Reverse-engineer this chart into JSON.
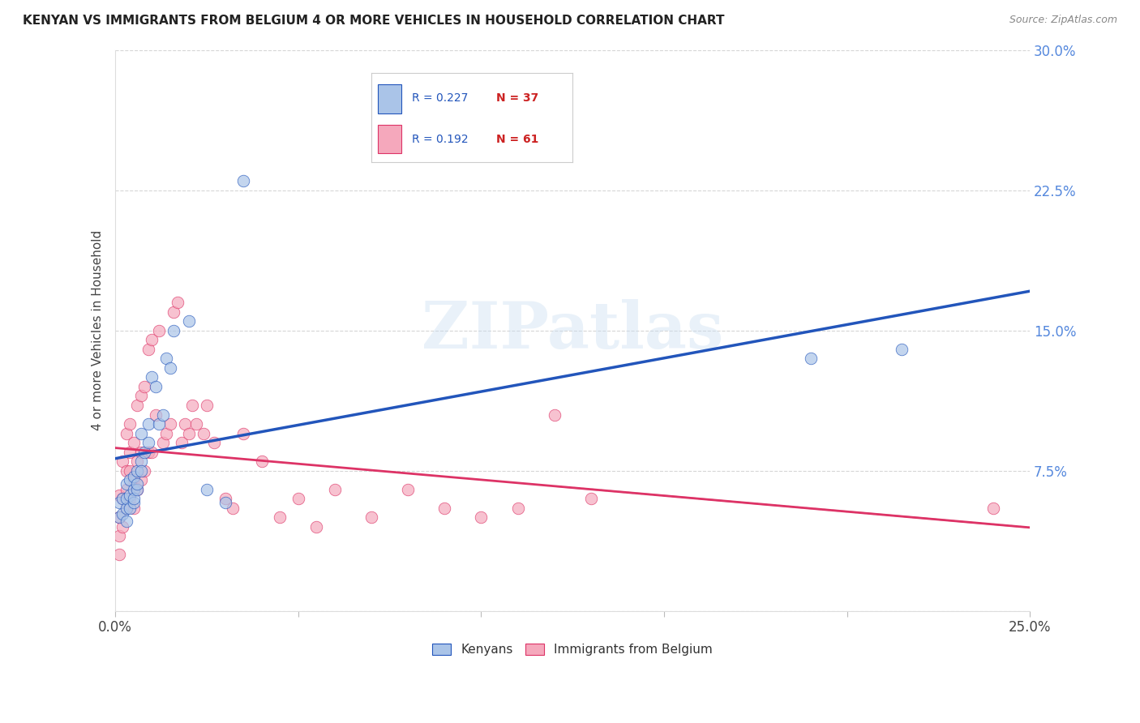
{
  "title": "KENYAN VS IMMIGRANTS FROM BELGIUM 4 OR MORE VEHICLES IN HOUSEHOLD CORRELATION CHART",
  "source": "Source: ZipAtlas.com",
  "ylabel": "4 or more Vehicles in Household",
  "legend_label1": "Kenyans",
  "legend_label2": "Immigrants from Belgium",
  "R1": 0.227,
  "N1": 37,
  "R2": 0.192,
  "N2": 61,
  "color1": "#aac4e8",
  "color2": "#f5a8bc",
  "line_color1": "#2255bb",
  "line_color2": "#dd3366",
  "xlim": [
    0.0,
    0.25
  ],
  "ylim": [
    0.0,
    0.3
  ],
  "xticks": [
    0.0,
    0.05,
    0.1,
    0.15,
    0.2,
    0.25
  ],
  "yticks": [
    0.0,
    0.075,
    0.15,
    0.225,
    0.3
  ],
  "xticklabels": [
    "0.0%",
    "",
    "",
    "",
    "",
    "25.0%"
  ],
  "yticklabels": [
    "",
    "7.5%",
    "15.0%",
    "22.5%",
    "30.0%"
  ],
  "watermark": "ZIPatlas",
  "kenyans_x": [
    0.001,
    0.001,
    0.002,
    0.002,
    0.003,
    0.003,
    0.003,
    0.003,
    0.004,
    0.004,
    0.004,
    0.005,
    0.005,
    0.005,
    0.005,
    0.006,
    0.006,
    0.006,
    0.007,
    0.007,
    0.007,
    0.008,
    0.009,
    0.009,
    0.01,
    0.011,
    0.012,
    0.013,
    0.014,
    0.015,
    0.016,
    0.02,
    0.025,
    0.03,
    0.035,
    0.19,
    0.215
  ],
  "kenyans_y": [
    0.05,
    0.058,
    0.052,
    0.06,
    0.048,
    0.055,
    0.06,
    0.068,
    0.055,
    0.062,
    0.07,
    0.058,
    0.065,
    0.072,
    0.06,
    0.065,
    0.068,
    0.075,
    0.08,
    0.075,
    0.095,
    0.085,
    0.09,
    0.1,
    0.125,
    0.12,
    0.1,
    0.105,
    0.135,
    0.13,
    0.15,
    0.155,
    0.065,
    0.058,
    0.23,
    0.135,
    0.14
  ],
  "belgium_x": [
    0.001,
    0.001,
    0.001,
    0.001,
    0.002,
    0.002,
    0.002,
    0.003,
    0.003,
    0.003,
    0.003,
    0.004,
    0.004,
    0.004,
    0.004,
    0.005,
    0.005,
    0.005,
    0.006,
    0.006,
    0.006,
    0.007,
    0.007,
    0.007,
    0.008,
    0.008,
    0.009,
    0.009,
    0.01,
    0.01,
    0.011,
    0.012,
    0.013,
    0.014,
    0.015,
    0.016,
    0.017,
    0.018,
    0.019,
    0.02,
    0.021,
    0.022,
    0.024,
    0.025,
    0.027,
    0.03,
    0.032,
    0.035,
    0.04,
    0.045,
    0.05,
    0.055,
    0.06,
    0.07,
    0.08,
    0.09,
    0.1,
    0.11,
    0.12,
    0.13,
    0.24
  ],
  "belgium_y": [
    0.03,
    0.04,
    0.05,
    0.062,
    0.045,
    0.06,
    0.08,
    0.055,
    0.065,
    0.075,
    0.095,
    0.06,
    0.075,
    0.085,
    0.1,
    0.055,
    0.07,
    0.09,
    0.065,
    0.08,
    0.11,
    0.07,
    0.085,
    0.115,
    0.075,
    0.12,
    0.085,
    0.14,
    0.085,
    0.145,
    0.105,
    0.15,
    0.09,
    0.095,
    0.1,
    0.16,
    0.165,
    0.09,
    0.1,
    0.095,
    0.11,
    0.1,
    0.095,
    0.11,
    0.09,
    0.06,
    0.055,
    0.095,
    0.08,
    0.05,
    0.06,
    0.045,
    0.065,
    0.05,
    0.065,
    0.055,
    0.05,
    0.055,
    0.105,
    0.06,
    0.055
  ]
}
